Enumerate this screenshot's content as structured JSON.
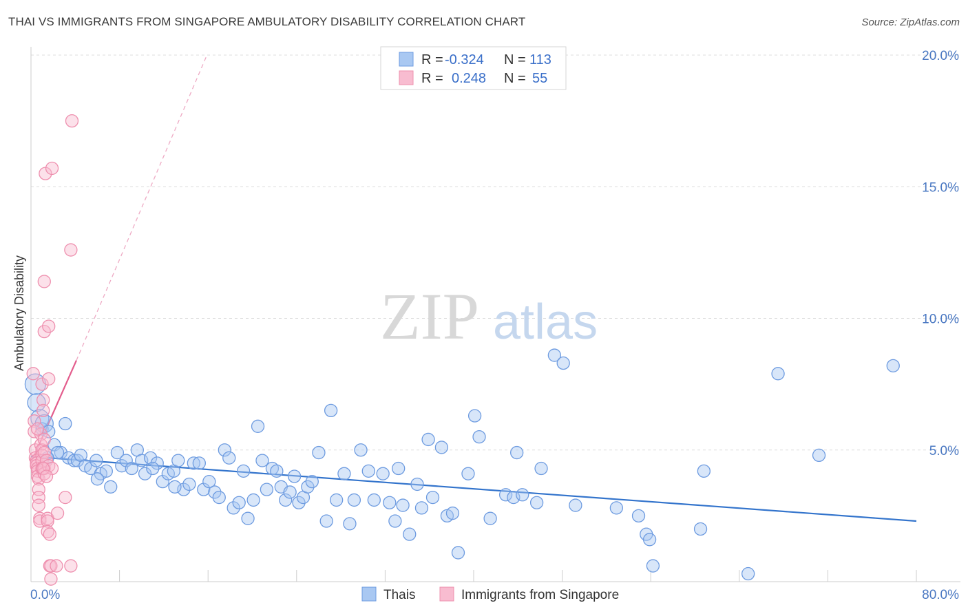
{
  "title": "THAI VS IMMIGRANTS FROM SINGAPORE AMBULATORY DISABILITY CORRELATION CHART",
  "source": "Source: ZipAtlas.com",
  "watermark": {
    "zip": "ZIP",
    "atlas": "atlas"
  },
  "legend": {
    "r_label": "R =",
    "n_label": "N =",
    "rows": [
      {
        "r": "-0.324",
        "n": "113",
        "color": "#a9c8f2",
        "stroke": "#6d9be0"
      },
      {
        "r": "0.248",
        "n": "55",
        "color": "#f8bcd0",
        "stroke": "#ee8fae"
      }
    ]
  },
  "chart_data": {
    "type": "scatter",
    "title": "THAI VS IMMIGRANTS FROM SINGAPORE AMBULATORY DISABILITY CORRELATION CHART",
    "xlabel": "",
    "ylabel": "Ambulatory Disability",
    "xlim": [
      0,
      80
    ],
    "ylim": [
      0,
      20
    ],
    "x_tick_labels": [
      "0.0%",
      "80.0%"
    ],
    "y_tick_labels": [
      "5.0%",
      "10.0%",
      "15.0%",
      "20.0%"
    ],
    "y_ticks": [
      5,
      10,
      15,
      20
    ],
    "series": [
      {
        "name": "Thais",
        "color": "#a9c8f2",
        "stroke": "#6d9be0",
        "trend": {
          "x": [
            0,
            80
          ],
          "y": [
            4.75,
            2.3
          ],
          "color": "#3374cc"
        },
        "points": [
          [
            0.4,
            7.5
          ],
          [
            0.5,
            6.8
          ],
          [
            0.8,
            6.2
          ],
          [
            1.0,
            5.8
          ],
          [
            1.2,
            6.0
          ],
          [
            1.6,
            5.7
          ],
          [
            2.1,
            5.2
          ],
          [
            2.7,
            4.9
          ],
          [
            3.1,
            6.0
          ],
          [
            3.4,
            4.7
          ],
          [
            3.9,
            4.6
          ],
          [
            4.2,
            4.6
          ],
          [
            4.5,
            4.8
          ],
          [
            4.9,
            4.4
          ],
          [
            5.4,
            4.3
          ],
          [
            5.9,
            4.6
          ],
          [
            6.3,
            4.1
          ],
          [
            6.8,
            4.2
          ],
          [
            7.2,
            3.6
          ],
          [
            7.8,
            4.9
          ],
          [
            8.2,
            4.4
          ],
          [
            8.6,
            4.6
          ],
          [
            9.1,
            4.3
          ],
          [
            9.6,
            5.0
          ],
          [
            10.0,
            4.6
          ],
          [
            10.3,
            4.1
          ],
          [
            10.8,
            4.7
          ],
          [
            11.4,
            4.5
          ],
          [
            11.9,
            3.8
          ],
          [
            12.4,
            4.1
          ],
          [
            12.9,
            4.2
          ],
          [
            13.3,
            4.6
          ],
          [
            13.8,
            3.5
          ],
          [
            14.3,
            3.7
          ],
          [
            14.7,
            4.5
          ],
          [
            15.2,
            4.5
          ],
          [
            15.6,
            3.5
          ],
          [
            16.1,
            3.8
          ],
          [
            16.6,
            3.4
          ],
          [
            17.0,
            3.2
          ],
          [
            17.5,
            5.0
          ],
          [
            17.9,
            4.7
          ],
          [
            18.3,
            2.8
          ],
          [
            18.8,
            3.0
          ],
          [
            19.2,
            4.2
          ],
          [
            19.6,
            2.4
          ],
          [
            20.1,
            3.1
          ],
          [
            20.5,
            5.9
          ],
          [
            20.9,
            4.6
          ],
          [
            21.3,
            3.5
          ],
          [
            21.8,
            4.3
          ],
          [
            22.2,
            4.2
          ],
          [
            22.6,
            3.6
          ],
          [
            23.0,
            3.1
          ],
          [
            23.4,
            3.4
          ],
          [
            23.8,
            4.0
          ],
          [
            24.2,
            3.0
          ],
          [
            24.6,
            3.2
          ],
          [
            25.0,
            3.6
          ],
          [
            25.4,
            3.8
          ],
          [
            26.0,
            4.9
          ],
          [
            26.7,
            2.3
          ],
          [
            27.1,
            6.5
          ],
          [
            27.6,
            3.1
          ],
          [
            28.3,
            4.1
          ],
          [
            28.8,
            2.2
          ],
          [
            29.2,
            3.1
          ],
          [
            29.8,
            5.0
          ],
          [
            30.5,
            4.2
          ],
          [
            31.0,
            3.1
          ],
          [
            31.8,
            4.1
          ],
          [
            32.4,
            3.0
          ],
          [
            32.9,
            2.3
          ],
          [
            33.2,
            4.3
          ],
          [
            33.6,
            2.9
          ],
          [
            34.2,
            1.8
          ],
          [
            34.9,
            3.7
          ],
          [
            35.3,
            2.8
          ],
          [
            35.9,
            5.4
          ],
          [
            36.3,
            3.2
          ],
          [
            37.1,
            5.1
          ],
          [
            37.6,
            2.5
          ],
          [
            38.1,
            2.6
          ],
          [
            38.6,
            1.1
          ],
          [
            39.5,
            4.1
          ],
          [
            40.1,
            6.3
          ],
          [
            40.5,
            5.5
          ],
          [
            41.5,
            2.4
          ],
          [
            42.9,
            3.3
          ],
          [
            43.6,
            3.2
          ],
          [
            43.9,
            4.9
          ],
          [
            44.4,
            3.3
          ],
          [
            45.7,
            3.0
          ],
          [
            46.1,
            4.3
          ],
          [
            47.3,
            8.6
          ],
          [
            48.1,
            8.3
          ],
          [
            49.2,
            2.9
          ],
          [
            52.9,
            2.8
          ],
          [
            54.9,
            2.5
          ],
          [
            55.6,
            1.8
          ],
          [
            55.9,
            1.6
          ],
          [
            56.2,
            0.6
          ],
          [
            60.5,
            2.0
          ],
          [
            60.8,
            4.2
          ],
          [
            64.8,
            0.3
          ],
          [
            67.5,
            7.9
          ],
          [
            71.2,
            4.8
          ],
          [
            77.9,
            8.2
          ],
          [
            2.4,
            4.9
          ],
          [
            1.5,
            4.7
          ],
          [
            6.0,
            3.9
          ],
          [
            11.0,
            4.3
          ],
          [
            13.0,
            3.6
          ]
        ]
      },
      {
        "name": "Immigrants from Singapore",
        "color": "#f8bcd0",
        "stroke": "#ee8fae",
        "trend": {
          "x": [
            0.1,
            4.1
          ],
          "y": [
            4.6,
            8.4
          ],
          "color": "#e35c8c",
          "extended": {
            "x": [
              4.1,
              15.9
            ],
            "y": [
              8.4,
              20.0
            ]
          }
        },
        "points": [
          [
            0.2,
            7.9
          ],
          [
            0.3,
            6.1
          ],
          [
            0.3,
            5.7
          ],
          [
            0.4,
            5.0
          ],
          [
            0.4,
            4.7
          ],
          [
            0.5,
            4.6
          ],
          [
            0.5,
            4.5
          ],
          [
            0.5,
            4.4
          ],
          [
            0.6,
            4.3
          ],
          [
            0.6,
            4.2
          ],
          [
            0.6,
            4.0
          ],
          [
            0.7,
            3.9
          ],
          [
            0.7,
            3.5
          ],
          [
            0.7,
            3.2
          ],
          [
            0.7,
            2.9
          ],
          [
            0.8,
            2.4
          ],
          [
            0.8,
            2.3
          ],
          [
            0.9,
            5.6
          ],
          [
            0.9,
            5.2
          ],
          [
            1.0,
            5.0
          ],
          [
            1.0,
            4.8
          ],
          [
            1.0,
            4.6
          ],
          [
            1.0,
            4.3
          ],
          [
            1.0,
            7.5
          ],
          [
            1.1,
            6.9
          ],
          [
            1.1,
            6.5
          ],
          [
            1.2,
            5.4
          ],
          [
            1.2,
            4.9
          ],
          [
            1.2,
            4.3
          ],
          [
            1.2,
            4.1
          ],
          [
            1.2,
            11.4
          ],
          [
            1.2,
            9.5
          ],
          [
            1.3,
            15.5
          ],
          [
            1.4,
            4.6
          ],
          [
            1.5,
            2.4
          ],
          [
            1.5,
            2.3
          ],
          [
            1.5,
            1.9
          ],
          [
            1.6,
            9.7
          ],
          [
            1.6,
            7.7
          ],
          [
            1.6,
            4.4
          ],
          [
            1.7,
            1.8
          ],
          [
            1.7,
            0.6
          ],
          [
            1.8,
            0.6
          ],
          [
            1.8,
            0.1
          ],
          [
            1.9,
            15.7
          ],
          [
            1.9,
            4.3
          ],
          [
            2.3,
            0.6
          ],
          [
            2.4,
            2.6
          ],
          [
            3.1,
            3.2
          ],
          [
            3.6,
            0.6
          ],
          [
            3.7,
            17.5
          ],
          [
            3.6,
            12.6
          ],
          [
            1.1,
            4.3
          ],
          [
            0.6,
            5.8
          ],
          [
            1.4,
            4.0
          ]
        ]
      }
    ]
  }
}
